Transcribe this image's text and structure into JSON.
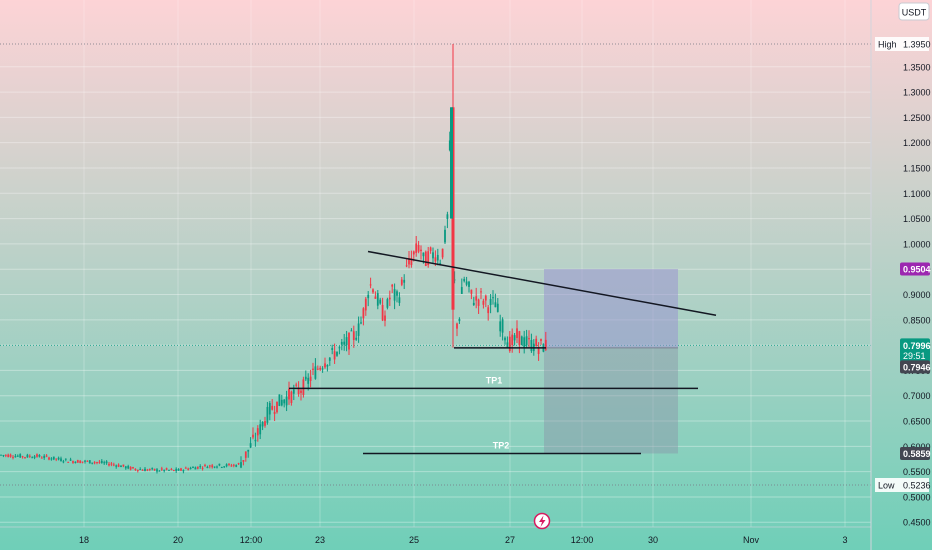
{
  "currency": "USDT",
  "background": {
    "top": "#fdd3d6",
    "bottom": "#6fcfb8"
  },
  "colors": {
    "up": "#089981",
    "down": "#f23645",
    "text": "#131722",
    "axis_line": "#b2b5be"
  },
  "chart_data": {
    "type": "candlestick",
    "ylim": [
      0.43,
      1.43
    ],
    "xlim": [
      0,
      932
    ],
    "y_ticks": [
      "0.4500",
      "0.5000",
      "0.5500",
      "0.6000",
      "0.6500",
      "0.7000",
      "0.7500",
      "0.8000",
      "0.8500",
      "0.9000",
      "0.9500",
      "1.0000",
      "1.0500",
      "1.1000",
      "1.1500",
      "1.2000",
      "1.2500",
      "1.3000",
      "1.3500"
    ],
    "x_ticks": [
      {
        "label": "18",
        "x": 84
      },
      {
        "label": "20",
        "x": 178
      },
      {
        "label": "12:00",
        "x": 251
      },
      {
        "label": "23",
        "x": 320
      },
      {
        "label": "25",
        "x": 414
      },
      {
        "label": "27",
        "x": 510
      },
      {
        "label": "12:00",
        "x": 582
      },
      {
        "label": "30",
        "x": 653
      },
      {
        "label": "Nov",
        "x": 751
      },
      {
        "label": "3",
        "x": 845
      }
    ],
    "price_path": [
      [
        0,
        0.583
      ],
      [
        12,
        0.582
      ],
      [
        24,
        0.58
      ],
      [
        36,
        0.581
      ],
      [
        48,
        0.578
      ],
      [
        60,
        0.574
      ],
      [
        72,
        0.571
      ],
      [
        84,
        0.57
      ],
      [
        96,
        0.569
      ],
      [
        108,
        0.566
      ],
      [
        120,
        0.562
      ],
      [
        132,
        0.556
      ],
      [
        144,
        0.554
      ],
      [
        156,
        0.553
      ],
      [
        168,
        0.553
      ],
      [
        178,
        0.552
      ],
      [
        190,
        0.557
      ],
      [
        202,
        0.56
      ],
      [
        214,
        0.562
      ],
      [
        226,
        0.562
      ],
      [
        238,
        0.563
      ],
      [
        245,
        0.58
      ],
      [
        252,
        0.605
      ],
      [
        258,
        0.625
      ],
      [
        264,
        0.65
      ],
      [
        270,
        0.672
      ],
      [
        276,
        0.682
      ],
      [
        282,
        0.69
      ],
      [
        288,
        0.698
      ],
      [
        294,
        0.704
      ],
      [
        300,
        0.712
      ],
      [
        306,
        0.722
      ],
      [
        312,
        0.74
      ],
      [
        318,
        0.755
      ],
      [
        324,
        0.768
      ],
      [
        330,
        0.775
      ],
      [
        336,
        0.786
      ],
      [
        342,
        0.794
      ],
      [
        348,
        0.806
      ],
      [
        354,
        0.818
      ],
      [
        360,
        0.835
      ],
      [
        364,
        0.87
      ],
      [
        368,
        0.905
      ],
      [
        372,
        0.925
      ],
      [
        376,
        0.895
      ],
      [
        380,
        0.878
      ],
      [
        384,
        0.855
      ],
      [
        388,
        0.88
      ],
      [
        392,
        0.91
      ],
      [
        396,
        0.888
      ],
      [
        400,
        0.902
      ],
      [
        404,
        0.935
      ],
      [
        408,
        0.955
      ],
      [
        412,
        0.972
      ],
      [
        416,
        0.985
      ],
      [
        420,
        0.998
      ],
      [
        424,
        0.962
      ],
      [
        428,
        0.975
      ],
      [
        432,
        0.978
      ],
      [
        436,
        0.982
      ],
      [
        440,
        0.97
      ],
      [
        444,
        0.995
      ],
      [
        448,
        1.06
      ],
      [
        451,
        1.27
      ],
      [
        453,
        1.13
      ],
      [
        455,
        0.87
      ],
      [
        458,
        0.828
      ],
      [
        461,
        0.89
      ],
      [
        464,
        0.93
      ],
      [
        468,
        0.915
      ],
      [
        472,
        0.895
      ],
      [
        476,
        0.888
      ],
      [
        480,
        0.895
      ],
      [
        484,
        0.888
      ],
      [
        488,
        0.88
      ],
      [
        492,
        0.88
      ],
      [
        496,
        0.885
      ],
      [
        500,
        0.845
      ],
      [
        504,
        0.83
      ],
      [
        507,
        0.812
      ],
      [
        510,
        0.803
      ],
      [
        514,
        0.806
      ],
      [
        518,
        0.82
      ],
      [
        522,
        0.808
      ],
      [
        526,
        0.805
      ],
      [
        530,
        0.803
      ],
      [
        534,
        0.8
      ],
      [
        538,
        0.799
      ],
      [
        542,
        0.798
      ],
      [
        546,
        0.7996
      ]
    ],
    "spike": {
      "x": 453,
      "high": 1.395,
      "low": 0.795
    },
    "trendlines": [
      {
        "x1": 368,
        "y1": 0.985,
        "x2": 716,
        "y2": 0.859
      }
    ],
    "levels": [
      {
        "x1": 454,
        "x2": 546,
        "y": 0.7946
      },
      {
        "label": "TP1",
        "x1": 289,
        "x2": 698,
        "y": 0.7145
      },
      {
        "label": "TP2",
        "x1": 363,
        "x2": 641,
        "y": 0.5859
      }
    ],
    "position_box": {
      "x1": 544,
      "x2": 678,
      "entry": 0.7946,
      "target": 0.9504,
      "stop": 0.5859
    },
    "price_labels": {
      "high": {
        "label": "High",
        "value": "1.3950",
        "price": 1.395
      },
      "low": {
        "label": "Low",
        "value": "0.5236",
        "price": 0.5236
      },
      "target": {
        "value": "0.9504",
        "price": 0.9504,
        "color": "#9c27b0"
      },
      "current": {
        "value": "0.7996",
        "timer": "29:51",
        "price": 0.7996,
        "color": "#089981"
      },
      "entry": {
        "value": "0.7946",
        "price": 0.7946,
        "color": "#434651"
      },
      "stop": {
        "value": "0.5859",
        "price": 0.5859,
        "color": "#434651"
      }
    }
  },
  "bolt_icon": "lightning-icon"
}
